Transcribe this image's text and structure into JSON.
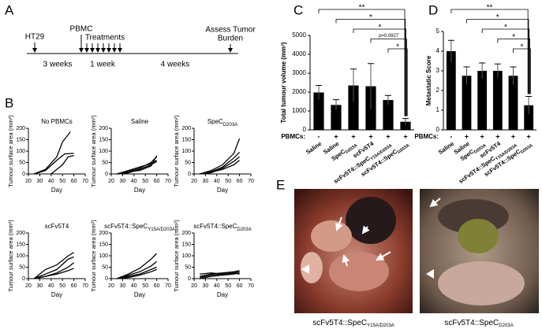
{
  "panel_labels": [
    "A",
    "B",
    "C",
    "D",
    "E"
  ],
  "timeline": {
    "events": [
      "HT29",
      "PBMC",
      "Treatments"
    ],
    "assess": [
      "Assess Tumor",
      "Burden"
    ],
    "intervals": [
      "3 weeks",
      "1 week",
      "4 weeks"
    ]
  },
  "image_captions": [
    {
      "main": "scFv5T4::SpeC",
      "sub": "Y15A/D203A"
    },
    {
      "main": "scFv5T4::SpeC",
      "sub": "D203A"
    }
  ],
  "chart_data": [
    {
      "type": "line",
      "title": "No PBMCs",
      "x_label": "Day",
      "y_label": "Tumour surface area (mm²)",
      "xlim": [
        20,
        70
      ],
      "ylim": [
        0,
        200
      ],
      "xticks": [
        20,
        30,
        40,
        50,
        60,
        70
      ],
      "yticks": [
        0,
        50,
        100,
        150,
        200
      ],
      "series": [
        {
          "color": "#000000",
          "x": [
            25,
            35,
            45,
            50,
            57
          ],
          "values": [
            0,
            20,
            75,
            140,
            185
          ]
        },
        {
          "color": "#000000",
          "x": [
            25,
            35,
            45,
            52,
            60
          ],
          "values": [
            0,
            15,
            60,
            88,
            90
          ]
        },
        {
          "color": "#000000",
          "x": [
            40,
            50,
            55,
            60
          ],
          "values": [
            0,
            40,
            75,
            80
          ]
        }
      ]
    },
    {
      "type": "line",
      "title": "Saline",
      "x_label": "Day",
      "y_label": "Tumour surface area (mm²)",
      "xlim": [
        20,
        70
      ],
      "ylim": [
        0,
        200
      ],
      "xticks": [
        20,
        30,
        40,
        50,
        60,
        70
      ],
      "yticks": [
        0,
        50,
        100,
        150,
        200
      ],
      "series": [
        {
          "color": "#000000",
          "x": [
            25,
            35,
            45,
            55,
            60
          ],
          "values": [
            0,
            10,
            25,
            50,
            75
          ]
        },
        {
          "color": "#000000",
          "x": [
            25,
            35,
            45,
            55,
            60
          ],
          "values": [
            0,
            15,
            30,
            45,
            60
          ]
        },
        {
          "color": "#000000",
          "x": [
            25,
            35,
            45,
            55,
            60
          ],
          "values": [
            0,
            5,
            20,
            40,
            55
          ]
        },
        {
          "color": "#000000",
          "x": [
            25,
            35,
            45,
            55,
            60
          ],
          "values": [
            0,
            10,
            15,
            35,
            80
          ]
        }
      ]
    },
    {
      "type": "line",
      "title": "SpeC",
      "title_sub": "D203A",
      "x_label": "Day",
      "y_label": "Tumour surface area (mm²)",
      "xlim": [
        20,
        70
      ],
      "ylim": [
        0,
        200
      ],
      "xticks": [
        20,
        30,
        40,
        50,
        60,
        70
      ],
      "yticks": [
        0,
        50,
        100,
        150,
        200
      ],
      "series": [
        {
          "color": "#000000",
          "x": [
            25,
            35,
            45,
            55,
            60
          ],
          "values": [
            0,
            15,
            40,
            90,
            155
          ]
        },
        {
          "color": "#000000",
          "x": [
            25,
            35,
            45,
            55,
            60
          ],
          "values": [
            0,
            10,
            30,
            70,
            95
          ]
        },
        {
          "color": "#000000",
          "x": [
            25,
            35,
            45,
            55,
            60
          ],
          "values": [
            0,
            5,
            25,
            55,
            75
          ]
        },
        {
          "color": "#000000",
          "x": [
            25,
            35,
            45,
            55,
            60
          ],
          "values": [
            0,
            8,
            20,
            40,
            60
          ]
        }
      ]
    },
    {
      "type": "line",
      "title": "scFv5T4",
      "x_label": "Day",
      "y_label": "Tumour surface area (mm²)",
      "xlim": [
        20,
        70
      ],
      "ylim": [
        0,
        200
      ],
      "xticks": [
        20,
        30,
        40,
        50,
        60,
        70
      ],
      "yticks": [
        0,
        50,
        100,
        150,
        200
      ],
      "series": [
        {
          "color": "#000000",
          "x": [
            25,
            35,
            45,
            55,
            60
          ],
          "values": [
            0,
            40,
            60,
            100,
            115
          ]
        },
        {
          "color": "#000000",
          "x": [
            25,
            35,
            45,
            55,
            60
          ],
          "values": [
            0,
            20,
            40,
            85,
            95
          ]
        },
        {
          "color": "#000000",
          "x": [
            25,
            35,
            45,
            55,
            60
          ],
          "values": [
            0,
            10,
            25,
            50,
            70
          ]
        },
        {
          "color": "#000000",
          "x": [
            25,
            35,
            45,
            55,
            60
          ],
          "values": [
            0,
            10,
            20,
            35,
            45
          ]
        }
      ]
    },
    {
      "type": "line",
      "title": "scFv5T4::SpeC",
      "title_sub": "Y15A/D203A",
      "x_label": "Day",
      "y_label": "Tumour surface area (mm²)",
      "xlim": [
        20,
        70
      ],
      "ylim": [
        0,
        200
      ],
      "xticks": [
        20,
        30,
        40,
        50,
        60,
        70
      ],
      "yticks": [
        0,
        50,
        100,
        150,
        200
      ],
      "series": [
        {
          "color": "#000000",
          "x": [
            25,
            35,
            45,
            55,
            60
          ],
          "values": [
            0,
            20,
            45,
            85,
            110
          ]
        },
        {
          "color": "#000000",
          "x": [
            25,
            35,
            45,
            55,
            60
          ],
          "values": [
            0,
            15,
            30,
            55,
            75
          ]
        },
        {
          "color": "#000000",
          "x": [
            25,
            35,
            45,
            55,
            60
          ],
          "values": [
            0,
            10,
            20,
            40,
            50
          ]
        },
        {
          "color": "#000000",
          "x": [
            25,
            35,
            45,
            55,
            60
          ],
          "values": [
            0,
            5,
            15,
            30,
            40
          ]
        }
      ]
    },
    {
      "type": "line",
      "title": "scFv5T4::SpeC",
      "title_sub": "D203A",
      "x_label": "Day",
      "y_label": "Tumour surface area (mm²)",
      "xlim": [
        20,
        70
      ],
      "ylim": [
        0,
        200
      ],
      "xticks": [
        20,
        30,
        40,
        50,
        60,
        70
      ],
      "yticks": [
        0,
        50,
        100,
        150,
        200
      ],
      "series": [
        {
          "color": "#000000",
          "x": [
            25,
            35,
            45,
            55,
            60
          ],
          "values": [
            10,
            20,
            25,
            30,
            35
          ]
        },
        {
          "color": "#000000",
          "x": [
            25,
            35,
            45,
            55,
            60
          ],
          "values": [
            5,
            15,
            20,
            25,
            30
          ]
        },
        {
          "color": "#000000",
          "x": [
            25,
            35,
            45,
            55,
            60
          ],
          "values": [
            0,
            10,
            15,
            20,
            25
          ]
        },
        {
          "color": "#000000",
          "x": [
            25,
            35,
            45,
            55,
            60
          ],
          "values": [
            20,
            25,
            20,
            25,
            20
          ]
        }
      ]
    },
    {
      "type": "bar",
      "y_label": "Total tumour volume (mm³)",
      "ylim": [
        0,
        5000
      ],
      "yticks": [
        0,
        1000,
        2000,
        3000,
        4000,
        5000
      ],
      "color": "#000000",
      "categories": [
        "Saline",
        "Saline",
        "SpeC",
        "scFv5T4",
        "scFv5T4::SpeC",
        "scFv5T4::SpeC"
      ],
      "category_subscripts": [
        null,
        null,
        "D203A",
        null,
        "Y15A/D203A",
        "D203A"
      ],
      "pbmc_label": "PBMCs:",
      "pbmcs": [
        "-",
        "+",
        "+",
        "+",
        "+",
        "+"
      ],
      "values": [
        1980,
        1320,
        2350,
        2310,
        1580,
        430
      ],
      "errors": [
        370,
        280,
        870,
        1200,
        240,
        170
      ],
      "annotations": [
        "**",
        "*",
        "*",
        "p=0.0927",
        "*"
      ]
    },
    {
      "type": "bar",
      "y_label": "Metastatic Score",
      "ylim": [
        0,
        5
      ],
      "yticks": [
        0,
        1,
        2,
        3,
        4,
        5
      ],
      "color": "#000000",
      "categories": [
        "Saline",
        "Saline",
        "SpeC",
        "scFv5T4",
        "scFv5T4::SpeC",
        "scFv5T4::SpeC"
      ],
      "category_subscripts": [
        null,
        null,
        "D203A",
        null,
        "Y15A/D203A",
        "D203A"
      ],
      "pbmc_label": "PBMCs:",
      "pbmcs": [
        "-",
        "+",
        "+",
        "+",
        "+",
        "+"
      ],
      "values": [
        4.0,
        2.75,
        3.0,
        3.0,
        2.75,
        1.25
      ],
      "errors": [
        0.55,
        0.45,
        0.4,
        0.35,
        0.45,
        0.45
      ],
      "annotations": [
        "**",
        "*",
        "*",
        "*",
        "*"
      ]
    }
  ]
}
